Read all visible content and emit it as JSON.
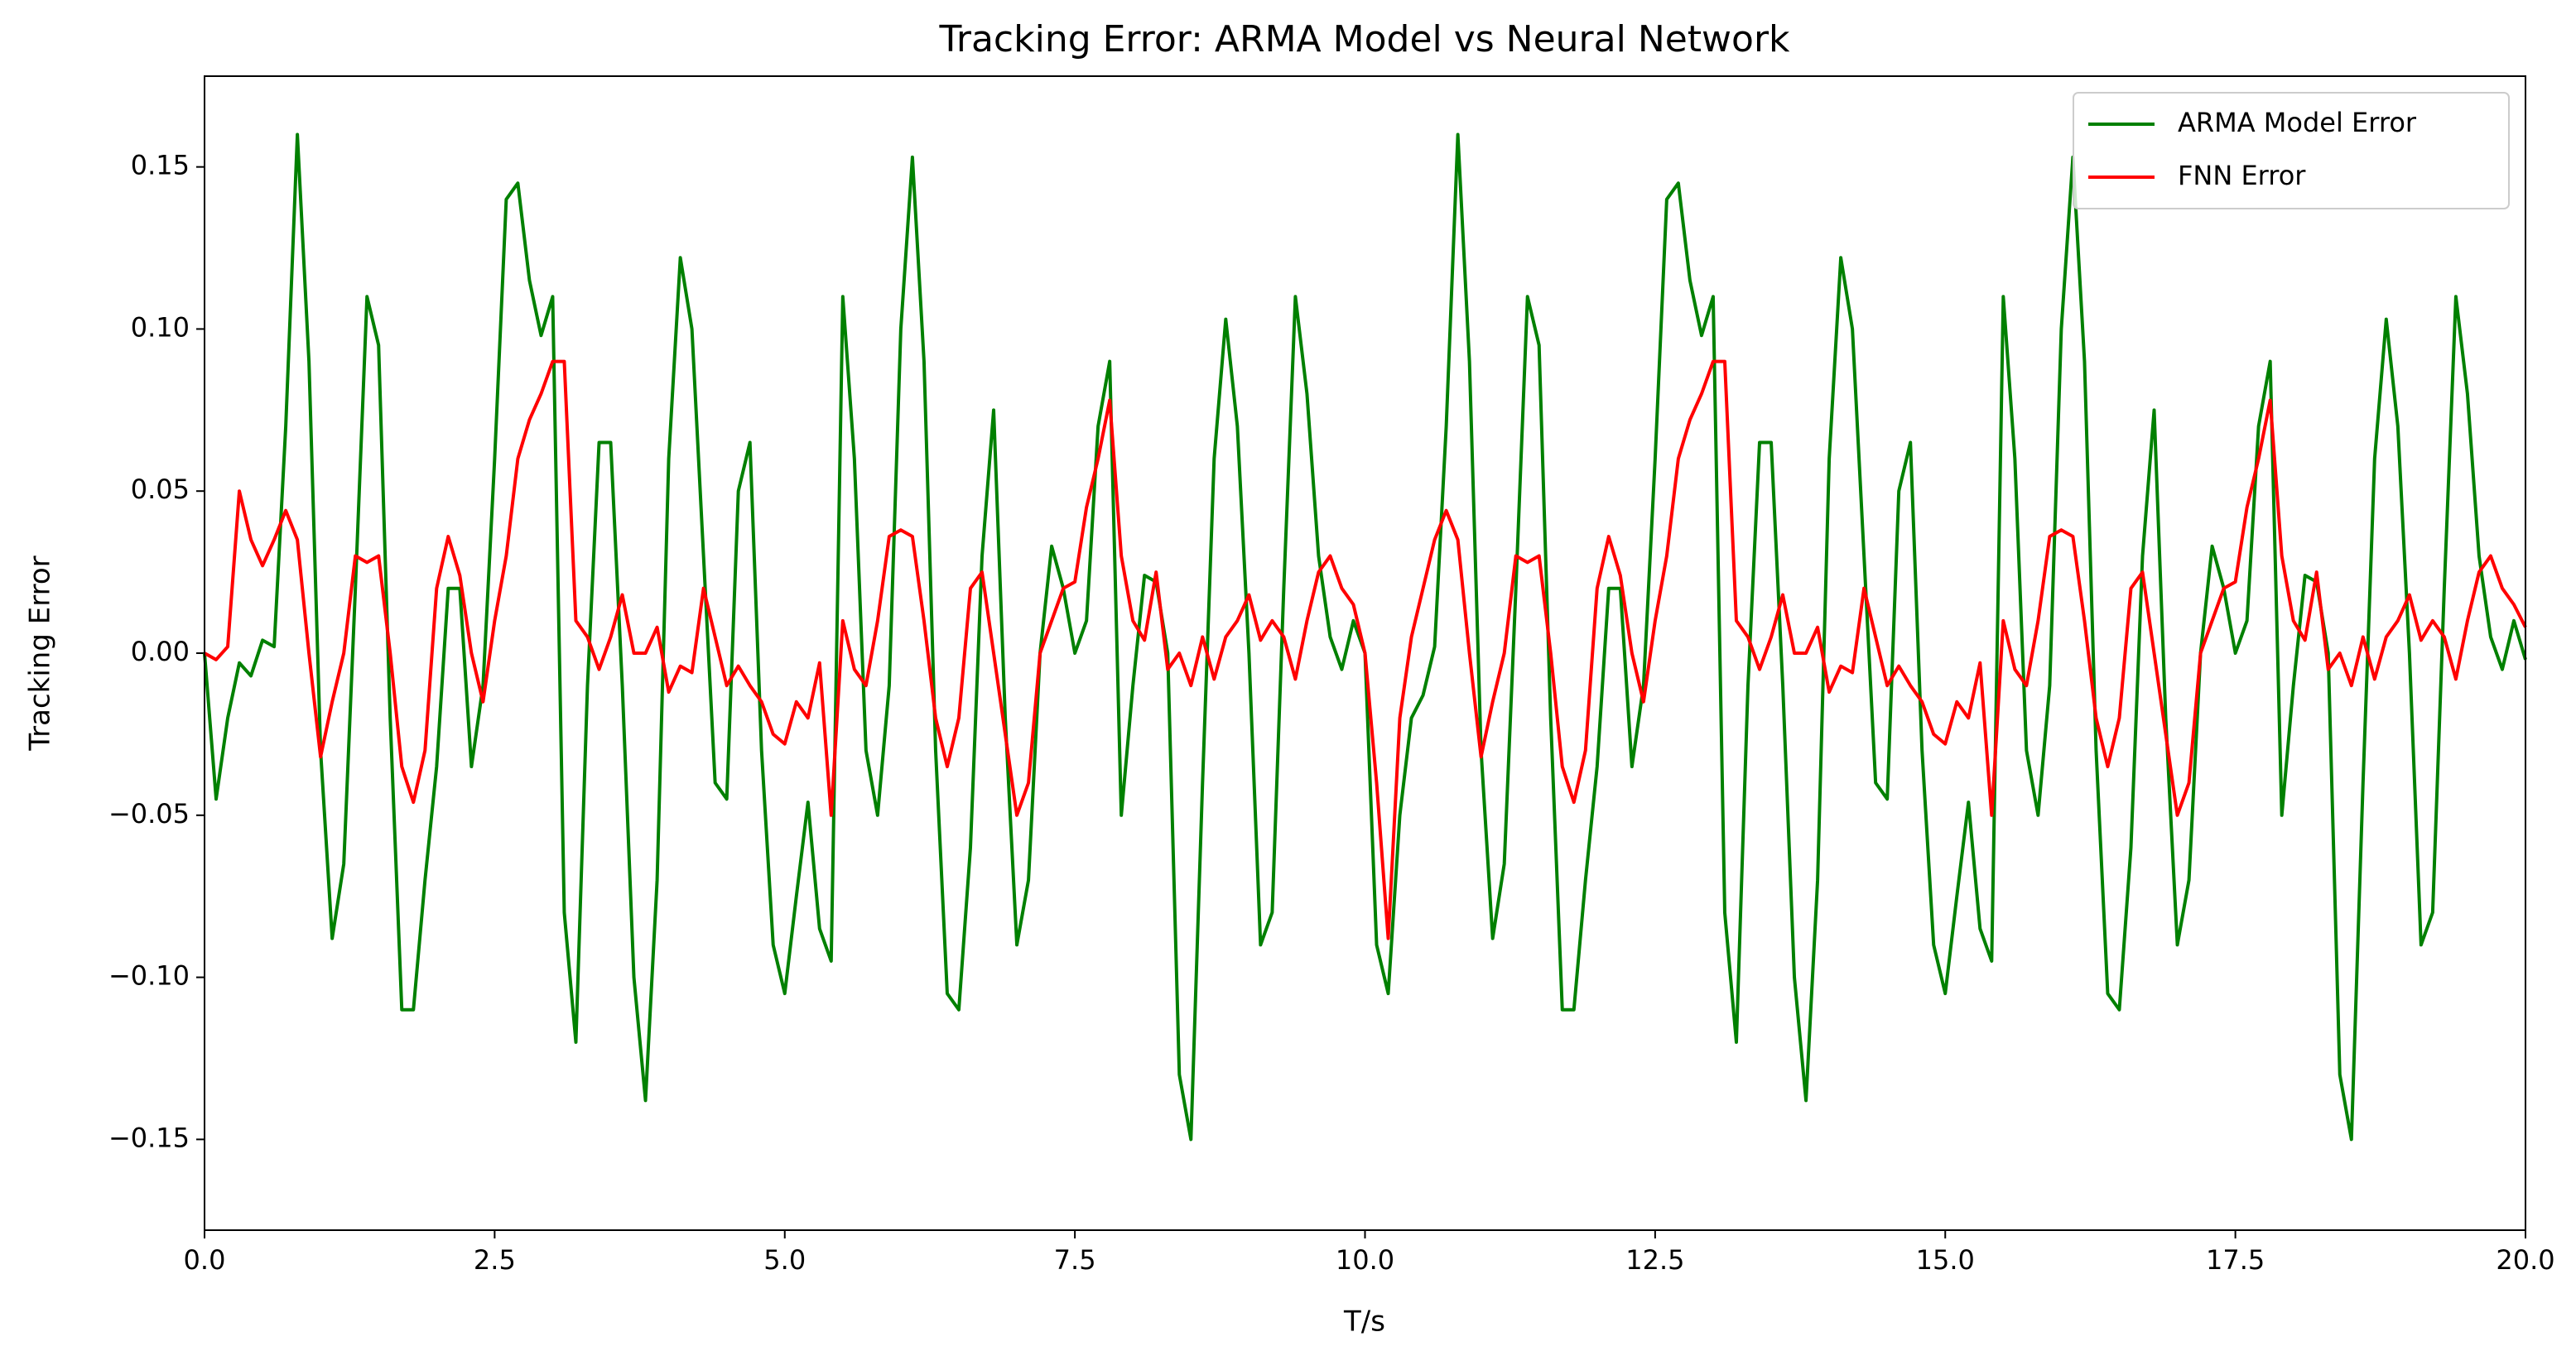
{
  "chart_data": {
    "type": "line",
    "title": "Tracking Error: ARMA Model vs Neural Network",
    "x_label": "T/s",
    "y_label": "Tracking Error",
    "x": [
      0.0,
      0.1,
      0.2,
      0.3,
      0.4,
      0.5,
      0.6,
      0.7,
      0.8,
      0.9,
      1.0,
      1.1,
      1.2,
      1.3,
      1.4,
      1.5,
      1.6,
      1.7,
      1.8,
      1.9,
      2.0,
      2.1,
      2.2,
      2.3,
      2.4,
      2.5,
      2.6,
      2.7,
      2.8,
      2.9,
      3.0,
      3.1,
      3.2,
      3.3,
      3.4,
      3.5,
      3.6,
      3.7,
      3.8,
      3.9,
      4.0,
      4.1,
      4.2,
      4.3,
      4.4,
      4.5,
      4.6,
      4.7,
      4.8,
      4.9,
      5.0,
      5.1,
      5.2,
      5.3,
      5.4,
      5.5,
      5.6,
      5.7,
      5.8,
      5.9,
      6.0,
      6.1,
      6.2,
      6.3,
      6.4,
      6.5,
      6.6,
      6.7,
      6.8,
      6.9,
      7.0,
      7.1,
      7.2,
      7.3,
      7.4,
      7.5,
      7.6,
      7.7,
      7.8,
      7.9,
      8.0,
      8.1,
      8.2,
      8.3,
      8.4,
      8.5,
      8.6,
      8.7,
      8.8,
      8.9,
      9.0,
      9.1,
      9.2,
      9.3,
      9.4,
      9.5,
      9.6,
      9.7,
      9.8,
      9.9,
      10.0,
      10.1,
      10.2,
      10.3,
      10.4,
      10.5,
      10.6,
      10.7,
      10.8,
      10.9,
      11.0,
      11.1,
      11.2,
      11.3,
      11.4,
      11.5,
      11.6,
      11.7,
      11.8,
      11.9,
      12.0,
      12.1,
      12.2,
      12.3,
      12.4,
      12.5,
      12.6,
      12.7,
      12.8,
      12.9,
      13.0,
      13.1,
      13.2,
      13.3,
      13.4,
      13.5,
      13.6,
      13.7,
      13.8,
      13.9,
      14.0,
      14.1,
      14.2,
      14.3,
      14.4,
      14.5,
      14.6,
      14.7,
      14.8,
      14.9,
      15.0,
      15.1,
      15.2,
      15.3,
      15.4,
      15.5,
      15.6,
      15.7,
      15.8,
      15.9,
      16.0,
      16.1,
      16.2,
      16.3,
      16.4,
      16.5,
      16.6,
      16.7,
      16.8,
      16.9,
      17.0,
      17.1,
      17.2,
      17.3,
      17.4,
      17.5,
      17.6,
      17.7,
      17.8,
      17.9,
      18.0,
      18.1,
      18.2,
      18.3,
      18.4,
      18.5,
      18.6,
      18.7,
      18.8,
      18.9,
      19.0,
      19.1,
      19.2,
      19.3,
      19.4,
      19.5,
      19.6,
      19.7,
      19.8,
      19.9,
      20.0
    ],
    "series": [
      {
        "name": "ARMA Model Error",
        "color": "#008000",
        "values": [
          0.0,
          -0.045,
          -0.02,
          -0.003,
          -0.007,
          0.004,
          0.002,
          0.07,
          0.16,
          0.09,
          -0.03,
          -0.088,
          -0.065,
          0.02,
          0.11,
          0.095,
          -0.02,
          -0.11,
          -0.11,
          -0.07,
          -0.035,
          0.02,
          0.02,
          -0.035,
          -0.01,
          0.06,
          0.14,
          0.145,
          0.115,
          0.098,
          0.11,
          -0.08,
          -0.12,
          -0.01,
          0.065,
          0.065,
          -0.01,
          -0.1,
          -0.138,
          -0.07,
          0.06,
          0.122,
          0.1,
          0.03,
          -0.04,
          -0.045,
          0.05,
          0.065,
          -0.03,
          -0.09,
          -0.105,
          -0.075,
          -0.046,
          -0.085,
          -0.095,
          0.11,
          0.06,
          -0.03,
          -0.05,
          -0.01,
          0.1,
          0.153,
          0.09,
          -0.03,
          -0.105,
          -0.11,
          -0.06,
          0.03,
          0.075,
          -0.02,
          -0.09,
          -0.07,
          0.0,
          0.033,
          0.02,
          0.0,
          0.01,
          0.07,
          0.09,
          -0.05,
          -0.01,
          0.024,
          0.022,
          0.0,
          -0.13,
          -0.15,
          -0.04,
          0.06,
          0.103,
          0.07,
          0.0,
          -0.09,
          -0.08,
          0.02,
          0.11,
          0.08,
          0.03,
          0.005,
          -0.005,
          0.01,
          0.0,
          -0.09,
          -0.105,
          -0.05,
          -0.02,
          -0.013,
          0.002,
          0.07,
          0.16,
          0.09,
          -0.03,
          -0.088,
          -0.065,
          0.02,
          0.11,
          0.095,
          -0.02,
          -0.11,
          -0.11,
          -0.07,
          -0.035,
          0.02,
          0.02,
          -0.035,
          -0.01,
          0.06,
          0.14,
          0.145,
          0.115,
          0.098,
          0.11,
          -0.08,
          -0.12,
          -0.01,
          0.065,
          0.065,
          -0.01,
          -0.1,
          -0.138,
          -0.07,
          0.06,
          0.122,
          0.1,
          0.03,
          -0.04,
          -0.045,
          0.05,
          0.065,
          -0.03,
          -0.09,
          -0.105,
          -0.075,
          -0.046,
          -0.085,
          -0.095,
          0.11,
          0.06,
          -0.03,
          -0.05,
          -0.01,
          0.1,
          0.153,
          0.09,
          -0.03,
          -0.105,
          -0.11,
          -0.06,
          0.03,
          0.075,
          -0.02,
          -0.09,
          -0.07,
          0.0,
          0.033,
          0.02,
          0.0,
          0.01,
          0.07,
          0.09,
          -0.05,
          -0.01,
          0.024,
          0.022,
          0.0,
          -0.13,
          -0.15,
          -0.04,
          0.06,
          0.103,
          0.07,
          0.0,
          -0.09,
          -0.08,
          0.02,
          0.11,
          0.08,
          0.03,
          0.005,
          -0.005,
          0.01,
          -0.002
        ]
      },
      {
        "name": "FNN Error",
        "color": "#ff0000",
        "values": [
          0.0,
          -0.002,
          0.002,
          0.05,
          0.035,
          0.027,
          0.035,
          0.044,
          0.035,
          0.0,
          -0.032,
          -0.015,
          0.0,
          0.03,
          0.028,
          0.03,
          0.0,
          -0.035,
          -0.046,
          -0.03,
          0.02,
          0.036,
          0.024,
          0.0,
          -0.015,
          0.01,
          0.03,
          0.06,
          0.072,
          0.08,
          0.09,
          0.09,
          0.01,
          0.005,
          -0.005,
          0.005,
          0.018,
          0.0,
          0.0,
          0.008,
          -0.012,
          -0.004,
          -0.006,
          0.02,
          0.005,
          -0.01,
          -0.004,
          -0.01,
          -0.015,
          -0.025,
          -0.028,
          -0.015,
          -0.02,
          -0.003,
          -0.05,
          0.01,
          -0.005,
          -0.01,
          0.01,
          0.036,
          0.038,
          0.036,
          0.01,
          -0.02,
          -0.035,
          -0.02,
          0.02,
          0.025,
          0.0,
          -0.025,
          -0.05,
          -0.04,
          0.0,
          0.01,
          0.02,
          0.022,
          0.045,
          0.06,
          0.078,
          0.03,
          0.01,
          0.004,
          0.025,
          -0.005,
          0.0,
          -0.01,
          0.005,
          -0.008,
          0.005,
          0.01,
          0.018,
          0.004,
          0.01,
          0.005,
          -0.008,
          0.01,
          0.025,
          0.03,
          0.02,
          0.015,
          0.0,
          -0.04,
          -0.088,
          -0.02,
          0.005,
          0.02,
          0.035,
          0.044,
          0.035,
          0.0,
          -0.032,
          -0.015,
          0.0,
          0.03,
          0.028,
          0.03,
          0.0,
          -0.035,
          -0.046,
          -0.03,
          0.02,
          0.036,
          0.024,
          0.0,
          -0.015,
          0.01,
          0.03,
          0.06,
          0.072,
          0.08,
          0.09,
          0.09,
          0.01,
          0.005,
          -0.005,
          0.005,
          0.018,
          0.0,
          0.0,
          0.008,
          -0.012,
          -0.004,
          -0.006,
          0.02,
          0.005,
          -0.01,
          -0.004,
          -0.01,
          -0.015,
          -0.025,
          -0.028,
          -0.015,
          -0.02,
          -0.003,
          -0.05,
          0.01,
          -0.005,
          -0.01,
          0.01,
          0.036,
          0.038,
          0.036,
          0.01,
          -0.02,
          -0.035,
          -0.02,
          0.02,
          0.025,
          0.0,
          -0.025,
          -0.05,
          -0.04,
          0.0,
          0.01,
          0.02,
          0.022,
          0.045,
          0.06,
          0.078,
          0.03,
          0.01,
          0.004,
          0.025,
          -0.005,
          0.0,
          -0.01,
          0.005,
          -0.008,
          0.005,
          0.01,
          0.018,
          0.004,
          0.01,
          0.005,
          -0.008,
          0.01,
          0.025,
          0.03,
          0.02,
          0.015,
          0.008
        ]
      }
    ],
    "xlim": [
      0,
      20
    ],
    "xticks": [
      {
        "value": 0,
        "label": "0.0"
      },
      2.5,
      {
        "value": 5,
        "label": "5.0"
      },
      7.5,
      {
        "value": 10,
        "label": "10.0"
      },
      12.5,
      {
        "value": 15,
        "label": "15.0"
      },
      17.5,
      {
        "value": 20,
        "label": "20.0"
      }
    ],
    "ylim": [
      -0.178,
      0.178
    ],
    "yticks": [
      {
        "value": -0.15,
        "label": "−0.15"
      },
      {
        "value": -0.1,
        "label": "−0.10"
      },
      {
        "value": -0.05,
        "label": "−0.05"
      },
      {
        "value": 0,
        "label": "0.00"
      },
      0.05,
      {
        "value": 0.1,
        "label": "0.10"
      },
      0.15
    ],
    "grid": false,
    "legend": "upper right"
  }
}
